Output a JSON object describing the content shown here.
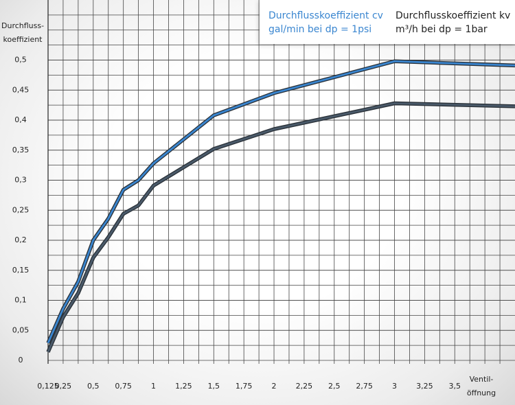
{
  "chart_data": {
    "type": "line",
    "ylabel": "Durchfluss-\nkoeffizient",
    "xlabel": "Ventil-\nöffnung",
    "x": [
      0.125,
      0.25,
      0.375,
      0.5,
      0.625,
      0.75,
      0.875,
      1,
      1.5,
      2,
      3,
      4
    ],
    "series": [
      {
        "name": "Durchflusskoeffizient cv\ngal/min bei dp = 1psi",
        "color": "#3a86d0",
        "values": [
          0.029,
          0.086,
          0.131,
          0.2,
          0.236,
          0.284,
          0.3,
          0.328,
          0.408,
          0.445,
          0.498,
          0.491
        ]
      },
      {
        "name": "Durchflusskoeffizient kv\nm³/h bei dp = 1bar",
        "color": "#4a5a6a",
        "values": [
          0.014,
          0.072,
          0.112,
          0.171,
          0.205,
          0.244,
          0.258,
          0.291,
          0.352,
          0.385,
          0.428,
          0.423
        ]
      }
    ],
    "xlim": [
      0.125,
      4
    ],
    "ylim": [
      0,
      0.6
    ],
    "xticks": [
      {
        "value": 0.125,
        "label": "0,125"
      },
      {
        "value": 0.25,
        "label": "0,25"
      },
      {
        "value": 0.5,
        "label": "0,5"
      },
      {
        "value": 0.75,
        "label": "0,75"
      },
      1,
      {
        "value": 1.25,
        "label": "1,25"
      },
      {
        "value": 1.5,
        "label": "1,5"
      },
      {
        "value": 1.75,
        "label": "1,75"
      },
      2,
      {
        "value": 2.25,
        "label": "2,25"
      },
      {
        "value": 2.5,
        "label": "2,5"
      },
      {
        "value": 2.75,
        "label": "2,75"
      },
      3,
      {
        "value": 3.25,
        "label": "3,25"
      },
      {
        "value": 3.5,
        "label": "3,5"
      }
    ],
    "yticks": [
      0,
      {
        "value": 0.05,
        "label": "0,05"
      },
      {
        "value": 0.1,
        "label": "0,1"
      },
      {
        "value": 0.15,
        "label": "0,15"
      },
      {
        "value": 0.2,
        "label": "0,2"
      },
      {
        "value": 0.25,
        "label": "0,25"
      },
      {
        "value": 0.3,
        "label": "0,3"
      },
      {
        "value": 0.35,
        "label": "0,35"
      },
      {
        "value": 0.4,
        "label": "0,4"
      },
      {
        "value": 0.45,
        "label": "0,45"
      },
      {
        "value": 0.5,
        "label": "0,5"
      }
    ],
    "grid": true
  }
}
